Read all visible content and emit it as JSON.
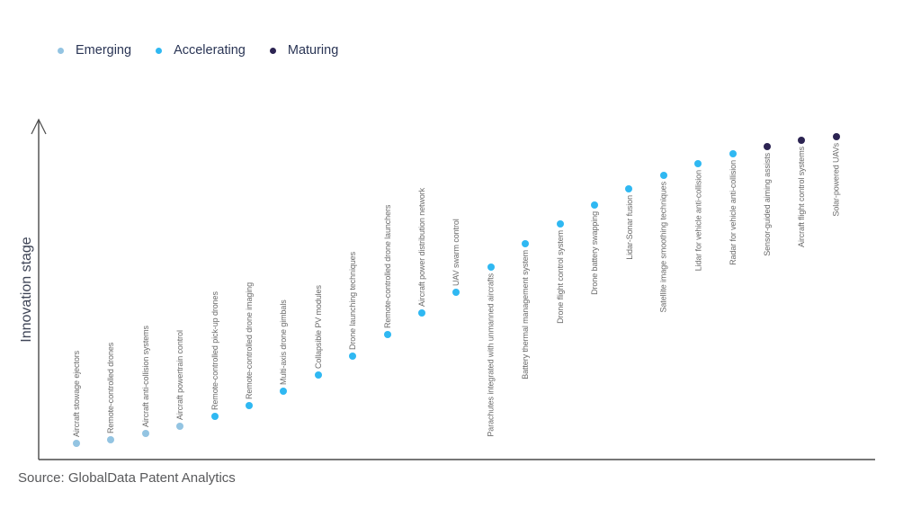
{
  "source": "Source: GlobalData Patent Analytics",
  "colors": {
    "emerging": "#93C4E2",
    "accelerating": "#2FB8F2",
    "maturing": "#2C2452",
    "axis": "#4A4A4A",
    "point_label_text": "#6B6B6B",
    "legend_text": "#2A3555",
    "source_text": "#58595B"
  },
  "legend": {
    "items": [
      {
        "label": "Emerging",
        "stage": "emerging"
      },
      {
        "label": "Accelerating",
        "stage": "accelerating"
      },
      {
        "label": "Maturing",
        "stage": "maturing"
      }
    ]
  },
  "chart_data": {
    "type": "scatter",
    "title": "",
    "xlabel": "",
    "ylabel": "Innovation stage",
    "legend_position": "top-left",
    "grid": false,
    "value_scale": [
      0,
      100
    ],
    "series": [
      {
        "name": "Emerging",
        "stage": "emerging"
      },
      {
        "name": "Accelerating",
        "stage": "accelerating"
      },
      {
        "name": "Maturing",
        "stage": "maturing"
      }
    ],
    "points": [
      {
        "label": "Aircraft stowage ejectors",
        "stage": "emerging",
        "value": 4.7,
        "label_position": "above"
      },
      {
        "label": "Remote-controlled drones",
        "stage": "emerging",
        "value": 5.8,
        "label_position": "above"
      },
      {
        "label": "Aircraft anti-collision systems",
        "stage": "emerging",
        "value": 7.7,
        "label_position": "above"
      },
      {
        "label": "Aircraft powertrain control",
        "stage": "emerging",
        "value": 9.8,
        "label_position": "above"
      },
      {
        "label": "Remote-controlled pick-up drones",
        "stage": "accelerating",
        "value": 12.7,
        "label_position": "above"
      },
      {
        "label": "Remote-controlled drone imaging",
        "stage": "accelerating",
        "value": 15.8,
        "label_position": "above"
      },
      {
        "label": "Multi-axis drone gimbals",
        "stage": "accelerating",
        "value": 20.1,
        "label_position": "above"
      },
      {
        "label": "Collapsible PV modules",
        "stage": "accelerating",
        "value": 24.8,
        "label_position": "above"
      },
      {
        "label": "Drone launching techniques",
        "stage": "accelerating",
        "value": 30.3,
        "label_position": "above"
      },
      {
        "label": "Remote-controlled drone launchers",
        "stage": "accelerating",
        "value": 36.7,
        "label_position": "above"
      },
      {
        "label": "Aircraft power distribution network",
        "stage": "accelerating",
        "value": 43.0,
        "label_position": "above"
      },
      {
        "label": "UAV swarm control",
        "stage": "accelerating",
        "value": 49.1,
        "label_position": "above"
      },
      {
        "label": "Parachutes integrated with unmanned aircrafts",
        "stage": "accelerating",
        "value": 56.5,
        "label_position": "below"
      },
      {
        "label": "Battery thermal management system",
        "stage": "accelerating",
        "value": 63.3,
        "label_position": "below"
      },
      {
        "label": "Drone flight control system",
        "stage": "accelerating",
        "value": 69.1,
        "label_position": "below"
      },
      {
        "label": "Drone battery swapping",
        "stage": "accelerating",
        "value": 74.7,
        "label_position": "below"
      },
      {
        "label": "Lidar-Sonar fusion",
        "stage": "accelerating",
        "value": 79.4,
        "label_position": "below"
      },
      {
        "label": "Satellite image smoothing techniques",
        "stage": "accelerating",
        "value": 83.4,
        "label_position": "below"
      },
      {
        "label": "Lidar for vehicle anti-collision",
        "stage": "accelerating",
        "value": 86.8,
        "label_position": "below"
      },
      {
        "label": "Radar for vehicle anti-collision",
        "stage": "accelerating",
        "value": 89.7,
        "label_position": "below"
      },
      {
        "label": "Sensor-guided aiming assists",
        "stage": "maturing",
        "value": 91.8,
        "label_position": "below"
      },
      {
        "label": "Aircraft flight control systems",
        "stage": "maturing",
        "value": 93.7,
        "label_position": "below"
      },
      {
        "label": "Solar-powered UAVs",
        "stage": "maturing",
        "value": 94.7,
        "label_position": "below"
      }
    ]
  }
}
